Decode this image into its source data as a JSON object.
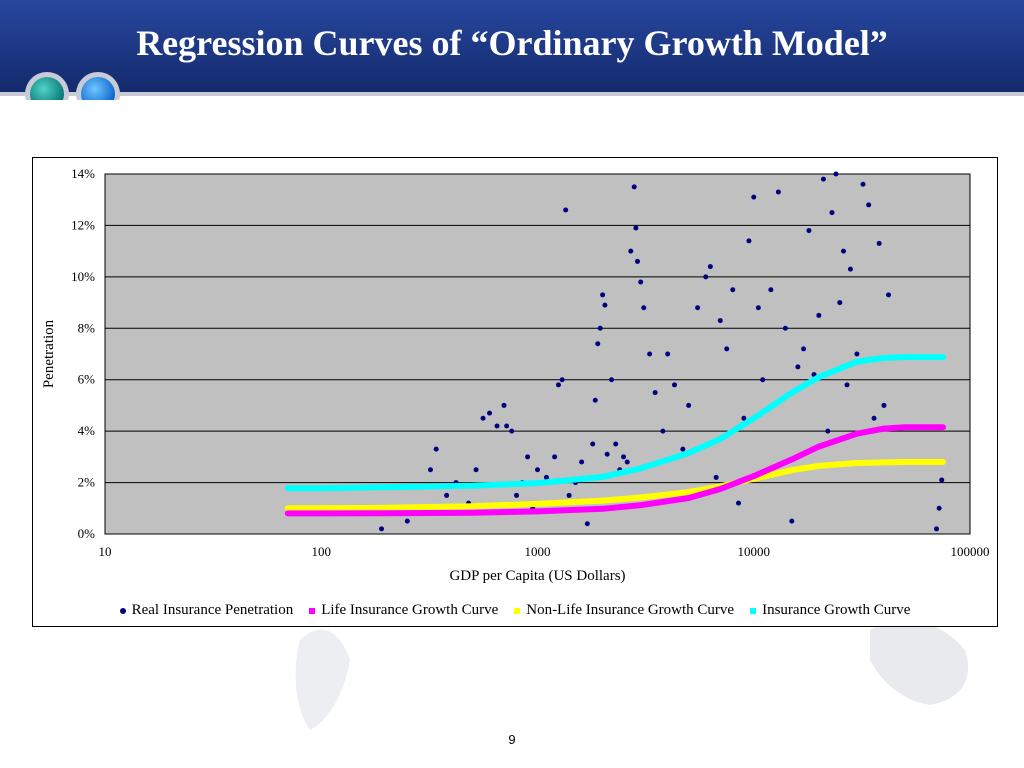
{
  "slide": {
    "title": "Regression Curves of “Ordinary Growth Model”",
    "page_number": "9"
  },
  "colors": {
    "banner": "#1f3b8f",
    "real": "#000080",
    "life": "#ff00ff",
    "nonlife": "#ffff00",
    "total": "#00ffff",
    "plot_bg": "#c0c0c0"
  },
  "chart_data": {
    "type": "scatter",
    "xlabel": "GDP per Capita (US Dollars)",
    "ylabel": "Penetration",
    "x_scale": "log",
    "xlim": [
      10,
      100000
    ],
    "ylim": [
      0,
      0.14
    ],
    "x_ticks": [
      "10",
      "100",
      "1000",
      "10000",
      "100000"
    ],
    "y_ticks": [
      "0%",
      "2%",
      "4%",
      "6%",
      "8%",
      "10%",
      "12%",
      "14%"
    ],
    "grid": "horizontal",
    "legend_position": "bottom",
    "series": [
      {
        "name": "Real Insurance Penetration",
        "kind": "scatter",
        "color": "#000080",
        "points": [
          [
            190,
            0.002
          ],
          [
            250,
            0.005
          ],
          [
            300,
            0.008
          ],
          [
            320,
            0.025
          ],
          [
            340,
            0.033
          ],
          [
            380,
            0.015
          ],
          [
            420,
            0.02
          ],
          [
            480,
            0.012
          ],
          [
            520,
            0.025
          ],
          [
            560,
            0.045
          ],
          [
            600,
            0.047
          ],
          [
            650,
            0.042
          ],
          [
            700,
            0.05
          ],
          [
            720,
            0.042
          ],
          [
            760,
            0.04
          ],
          [
            800,
            0.015
          ],
          [
            850,
            0.02
          ],
          [
            900,
            0.03
          ],
          [
            950,
            0.01
          ],
          [
            1000,
            0.025
          ],
          [
            1100,
            0.022
          ],
          [
            1200,
            0.03
          ],
          [
            1250,
            0.058
          ],
          [
            1300,
            0.06
          ],
          [
            1350,
            0.126
          ],
          [
            1400,
            0.015
          ],
          [
            1500,
            0.02
          ],
          [
            1600,
            0.028
          ],
          [
            1700,
            0.004
          ],
          [
            1800,
            0.035
          ],
          [
            1850,
            0.052
          ],
          [
            1900,
            0.074
          ],
          [
            1950,
            0.08
          ],
          [
            2000,
            0.093
          ],
          [
            2050,
            0.089
          ],
          [
            2100,
            0.031
          ],
          [
            2200,
            0.06
          ],
          [
            2300,
            0.035
          ],
          [
            2400,
            0.025
          ],
          [
            2500,
            0.03
          ],
          [
            2600,
            0.028
          ],
          [
            2700,
            0.11
          ],
          [
            2800,
            0.135
          ],
          [
            2850,
            0.119
          ],
          [
            2900,
            0.106
          ],
          [
            3000,
            0.098
          ],
          [
            3100,
            0.088
          ],
          [
            3300,
            0.07
          ],
          [
            3500,
            0.055
          ],
          [
            3800,
            0.04
          ],
          [
            4000,
            0.07
          ],
          [
            4300,
            0.058
          ],
          [
            4700,
            0.033
          ],
          [
            5000,
            0.05
          ],
          [
            5500,
            0.088
          ],
          [
            6000,
            0.1
          ],
          [
            6300,
            0.104
          ],
          [
            6700,
            0.022
          ],
          [
            7000,
            0.083
          ],
          [
            7500,
            0.072
          ],
          [
            8000,
            0.095
          ],
          [
            8500,
            0.012
          ],
          [
            9000,
            0.045
          ],
          [
            9500,
            0.114
          ],
          [
            10000,
            0.131
          ],
          [
            10500,
            0.088
          ],
          [
            11000,
            0.06
          ],
          [
            11500,
            0.024
          ],
          [
            12000,
            0.095
          ],
          [
            13000,
            0.133
          ],
          [
            14000,
            0.08
          ],
          [
            15000,
            0.005
          ],
          [
            16000,
            0.065
          ],
          [
            17000,
            0.072
          ],
          [
            18000,
            0.118
          ],
          [
            19000,
            0.062
          ],
          [
            20000,
            0.085
          ],
          [
            21000,
            0.138
          ],
          [
            22000,
            0.04
          ],
          [
            23000,
            0.125
          ],
          [
            24000,
            0.14
          ],
          [
            25000,
            0.09
          ],
          [
            26000,
            0.11
          ],
          [
            27000,
            0.058
          ],
          [
            28000,
            0.103
          ],
          [
            30000,
            0.07
          ],
          [
            32000,
            0.136
          ],
          [
            34000,
            0.128
          ],
          [
            36000,
            0.045
          ],
          [
            38000,
            0.113
          ],
          [
            40000,
            0.05
          ],
          [
            42000,
            0.093
          ],
          [
            70000,
            0.002
          ],
          [
            72000,
            0.01
          ],
          [
            74000,
            0.021
          ]
        ]
      },
      {
        "name": "Life Insurance Growth Curve",
        "kind": "curve",
        "color": "#ff00ff",
        "points": [
          [
            70,
            0.008
          ],
          [
            100,
            0.008
          ],
          [
            200,
            0.0081
          ],
          [
            500,
            0.0083
          ],
          [
            1000,
            0.0088
          ],
          [
            2000,
            0.0098
          ],
          [
            3000,
            0.0112
          ],
          [
            5000,
            0.014
          ],
          [
            7000,
            0.0175
          ],
          [
            10000,
            0.0225
          ],
          [
            15000,
            0.029
          ],
          [
            20000,
            0.034
          ],
          [
            30000,
            0.039
          ],
          [
            40000,
            0.041
          ],
          [
            50000,
            0.0415
          ],
          [
            75000,
            0.0415
          ]
        ]
      },
      {
        "name": "Non-Life Insurance Growth Curve",
        "kind": "curve",
        "color": "#ffff00",
        "points": [
          [
            70,
            0.01
          ],
          [
            100,
            0.01
          ],
          [
            200,
            0.0102
          ],
          [
            500,
            0.0108
          ],
          [
            1000,
            0.0117
          ],
          [
            2000,
            0.013
          ],
          [
            3000,
            0.0142
          ],
          [
            5000,
            0.0163
          ],
          [
            7000,
            0.0185
          ],
          [
            10000,
            0.0215
          ],
          [
            15000,
            0.0248
          ],
          [
            20000,
            0.0265
          ],
          [
            30000,
            0.0276
          ],
          [
            50000,
            0.028
          ],
          [
            75000,
            0.028
          ]
        ]
      },
      {
        "name": "Insurance Growth Curve",
        "kind": "curve",
        "color": "#00ffff",
        "points": [
          [
            70,
            0.0178
          ],
          [
            100,
            0.0178
          ],
          [
            200,
            0.0182
          ],
          [
            500,
            0.0188
          ],
          [
            1000,
            0.0198
          ],
          [
            2000,
            0.0222
          ],
          [
            3000,
            0.0255
          ],
          [
            5000,
            0.0315
          ],
          [
            7000,
            0.037
          ],
          [
            10000,
            0.045
          ],
          [
            15000,
            0.055
          ],
          [
            20000,
            0.061
          ],
          [
            30000,
            0.067
          ],
          [
            40000,
            0.0685
          ],
          [
            50000,
            0.0688
          ],
          [
            75000,
            0.0688
          ]
        ]
      }
    ]
  }
}
